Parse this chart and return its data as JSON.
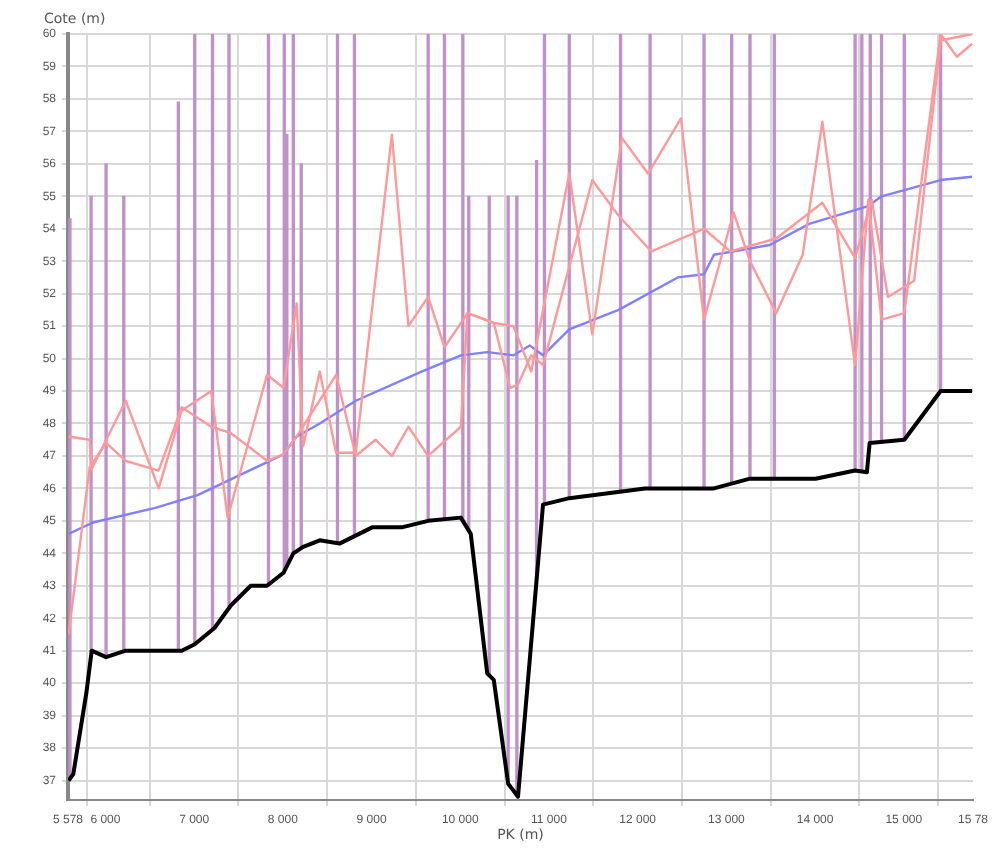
{
  "chart_data": {
    "type": "line",
    "xlabel": "PK (m)",
    "ylabel": "Cote (m)",
    "xlim": [
      5578,
      15780
    ],
    "xticks": [
      {
        "value": 5578,
        "label": "5 578"
      },
      {
        "value": 6000,
        "label": "6 000"
      },
      {
        "value": 7000,
        "label": "7 000"
      },
      {
        "value": 8000,
        "label": "8 000"
      },
      {
        "value": 9000,
        "label": "9 000"
      },
      {
        "value": 10000,
        "label": "10 000"
      },
      {
        "value": 11000,
        "label": "11 000"
      },
      {
        "value": 12000,
        "label": "12 000"
      },
      {
        "value": 13000,
        "label": "13 000"
      },
      {
        "value": 14000,
        "label": "14 000"
      },
      {
        "value": 15000,
        "label": "15 000"
      },
      {
        "value": 15780,
        "label": "15 78"
      }
    ],
    "ylim": [
      36.4,
      60
    ],
    "yticks": [
      37,
      38,
      39,
      40,
      41,
      42,
      43,
      44,
      45,
      46,
      47,
      48,
      49,
      50,
      51,
      52,
      53,
      54,
      55,
      56,
      57,
      58,
      59,
      60
    ],
    "grid": true,
    "marker": "none",
    "line_style": "solid",
    "series": [
      {
        "type": "bar",
        "color": "#c090c8",
        "x": [
          5600,
          5838,
          6007,
          6207,
          6822,
          7007,
          7207,
          7393,
          7838,
          8016,
          8045,
          8118,
          8207,
          8616,
          8807,
          9638,
          9822,
          10029,
          10096,
          10327,
          10540,
          10638,
          10860,
          10949,
          11229,
          11807,
          12140,
          12748,
          13060,
          13266,
          13540,
          14451,
          14527,
          14622,
          14749,
          15006,
          15415
        ],
        "base": [
          37.1,
          41.0,
          40.8,
          41.0,
          41.0,
          41.2,
          41.65,
          42.3,
          43.0,
          43.4,
          43.6,
          44.0,
          44.15,
          44.3,
          44.55,
          45.0,
          45.05,
          45.0,
          44.7,
          40.2,
          36.9,
          36.6,
          43.2,
          45.5,
          45.7,
          45.9,
          46.0,
          46.0,
          46.2,
          46.3,
          46.3,
          46.55,
          46.5,
          47.4,
          47.4,
          47.5,
          49.0
        ],
        "values": [
          17.2,
          14.0,
          15.2,
          14.0,
          16.9,
          18.8,
          18.35,
          17.7,
          17.0,
          16.6,
          13.3,
          16.0,
          11.85,
          15.7,
          15.45,
          15.0,
          14.95,
          15.0,
          10.3,
          14.8,
          18.1,
          18.4,
          12.9,
          14.5,
          14.3,
          14.1,
          14.0,
          14.0,
          13.8,
          13.7,
          13.7,
          13.45,
          13.5,
          12.6,
          12.6,
          12.5,
          11.0
        ]
      },
      {
        "color": "#ff9999",
        "x": [
          5585,
          5822,
          5845,
          6229,
          6600,
          6860,
          7193,
          7378,
          7822,
          8007,
          8156,
          8229,
          8416,
          8600,
          8822,
          9229,
          9416,
          9638,
          9822,
          10082,
          10378,
          10600,
          10800,
          11229,
          11489,
          11822,
          12117,
          12488,
          12748,
          13082,
          13266,
          13562,
          13860,
          14082,
          14451,
          14600,
          14749,
          15006,
          15415,
          15599,
          15770
        ],
        "values": [
          47.6,
          47.5,
          46.6,
          48.7,
          46.0,
          48.4,
          49.0,
          45.1,
          49.5,
          49.1,
          51.7,
          47.3,
          49.6,
          47.1,
          47.1,
          56.9,
          51.0,
          51.9,
          50.35,
          51.4,
          51.1,
          51.0,
          49.6,
          55.7,
          50.75,
          56.8,
          55.7,
          57.4,
          51.2,
          54.5,
          53.0,
          51.4,
          53.2,
          57.3,
          49.8,
          54.9,
          51.2,
          51.4,
          60.0,
          59.3,
          59.7
        ]
      },
      {
        "color": "#ff9999",
        "x": [
          5585,
          5822,
          6007,
          6229,
          6600,
          6860,
          7193,
          7416,
          7822,
          8007,
          8156,
          8600,
          8822,
          9044,
          9229,
          9416,
          9638,
          10007,
          10082,
          10378,
          10562,
          10651,
          10800,
          10933,
          11489,
          11785,
          12155,
          12748,
          13044,
          13562,
          14082,
          14451,
          14638,
          14821,
          15117,
          15415,
          15770
        ],
        "values": [
          41.5,
          46.65,
          47.4,
          46.85,
          46.55,
          48.5,
          47.9,
          47.7,
          46.85,
          47.05,
          47.6,
          49.5,
          47.0,
          47.5,
          47.0,
          47.9,
          47.0,
          47.9,
          51.4,
          51.1,
          49.1,
          49.2,
          50.1,
          49.8,
          55.5,
          54.4,
          53.3,
          54.0,
          53.3,
          53.7,
          54.8,
          53.1,
          54.9,
          51.9,
          52.4,
          59.8,
          60.0
        ]
      },
      {
        "color": "#8080ff",
        "x": [
          5585,
          5859,
          6563,
          7045,
          8007,
          8156,
          8416,
          8822,
          9563,
          10007,
          10304,
          10600,
          10785,
          10933,
          11229,
          11785,
          12452,
          12748,
          12860,
          13489,
          13933,
          14600,
          14749,
          15415,
          15770
        ],
        "values": [
          44.6,
          44.95,
          45.4,
          45.8,
          47.05,
          47.6,
          48.0,
          48.7,
          49.6,
          50.1,
          50.2,
          50.1,
          50.4,
          50.1,
          50.9,
          51.5,
          52.5,
          52.6,
          53.2,
          53.5,
          54.15,
          54.7,
          55.0,
          55.5,
          55.6
        ]
      },
      {
        "color": "#000000",
        "x": [
          5585,
          5638,
          5785,
          5845,
          6007,
          6229,
          6860,
          7007,
          7229,
          7416,
          7638,
          7822,
          8007,
          8118,
          8229,
          8416,
          8638,
          9007,
          9340,
          9638,
          10007,
          10118,
          10304,
          10378,
          10540,
          10651,
          10933,
          11229,
          12082,
          12860,
          13266,
          14006,
          14451,
          14584,
          14615,
          15006,
          15415,
          15770
        ],
        "values": [
          37.0,
          37.2,
          39.7,
          41.0,
          40.8,
          41.0,
          41.0,
          41.2,
          41.7,
          42.4,
          43.0,
          43.0,
          43.4,
          44.0,
          44.2,
          44.4,
          44.3,
          44.8,
          44.8,
          45.0,
          45.1,
          44.6,
          40.3,
          40.1,
          36.9,
          36.5,
          45.5,
          45.7,
          46.0,
          46.0,
          46.3,
          46.3,
          46.55,
          46.5,
          47.4,
          47.5,
          49.0,
          49.0
        ]
      }
    ]
  }
}
